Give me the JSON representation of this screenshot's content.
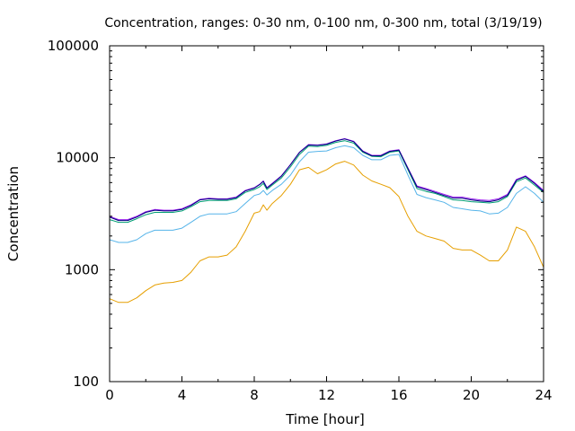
{
  "chart_data": {
    "type": "line",
    "title": "Concentration, ranges: 0-30 nm, 0-100 nm, 0-300 nm, total (3/19/19)",
    "xlabel": "Time [hour]",
    "ylabel": "Concentration",
    "xlim": [
      0,
      24
    ],
    "ylim": [
      100,
      100000
    ],
    "yscale": "log",
    "xticks": [
      0,
      4,
      8,
      12,
      16,
      20,
      24
    ],
    "yticks": [
      100,
      1000,
      10000,
      100000
    ],
    "ytick_labels": [
      "100",
      "1000",
      "10000",
      "100000"
    ],
    "grid": false,
    "series": [
      {
        "color": "#e69f00",
        "x": [
          0,
          0.5,
          1,
          1.5,
          2,
          2.5,
          3,
          3.5,
          4,
          4.5,
          5,
          5.5,
          6,
          6.5,
          7,
          7.5,
          8,
          8.3,
          8.5,
          8.7,
          9,
          9.5,
          10,
          10.5,
          11,
          11.5,
          12,
          12.5,
          13,
          13.5,
          14,
          14.5,
          15,
          15.5,
          16,
          16.5,
          17,
          17.5,
          18,
          18.5,
          19,
          19.5,
          20,
          20.5,
          21,
          21.5,
          22,
          22.5,
          23,
          23.5,
          24
        ],
        "y": [
          550,
          510,
          510,
          560,
          650,
          730,
          760,
          770,
          800,
          950,
          1200,
          1300,
          1300,
          1350,
          1600,
          2200,
          3200,
          3300,
          3800,
          3400,
          3900,
          4600,
          5800,
          7800,
          8200,
          7200,
          7800,
          8800,
          9300,
          8600,
          7000,
          6200,
          5800,
          5400,
          4500,
          3000,
          2200,
          2000,
          1900,
          1800,
          1550,
          1500,
          1500,
          1350,
          1200,
          1200,
          1500,
          2400,
          2200,
          1600,
          1050
        ]
      },
      {
        "color": "#56b4e9",
        "x": [
          0,
          0.5,
          1,
          1.5,
          2,
          2.5,
          3,
          3.5,
          4,
          4.5,
          5,
          5.5,
          6,
          6.5,
          7,
          7.5,
          8,
          8.3,
          8.5,
          8.7,
          9,
          9.5,
          10,
          10.5,
          11,
          11.5,
          12,
          12.5,
          13,
          13.5,
          14,
          14.5,
          15,
          15.5,
          16,
          16.5,
          17,
          17.5,
          18,
          18.5,
          19,
          19.5,
          20,
          20.5,
          21,
          21.5,
          22,
          22.5,
          23,
          23.5,
          24
        ],
        "y": [
          1850,
          1750,
          1750,
          1850,
          2100,
          2250,
          2250,
          2250,
          2350,
          2650,
          3000,
          3150,
          3150,
          3150,
          3300,
          3900,
          4600,
          4750,
          5100,
          4650,
          5100,
          5800,
          7000,
          9200,
          11200,
          11400,
          11500,
          12300,
          12800,
          12300,
          10500,
          9600,
          9600,
          10500,
          10700,
          7000,
          4700,
          4400,
          4200,
          4000,
          3600,
          3500,
          3400,
          3350,
          3150,
          3200,
          3600,
          4800,
          5500,
          4800,
          4000
        ]
      },
      {
        "color": "#009e73",
        "x": [
          0,
          0.5,
          1,
          1.5,
          2,
          2.5,
          3,
          3.5,
          4,
          4.5,
          5,
          5.5,
          6,
          6.5,
          7,
          7.5,
          8,
          8.3,
          8.5,
          8.7,
          9,
          9.5,
          10,
          10.5,
          11,
          11.5,
          12,
          12.5,
          13,
          13.5,
          14,
          14.5,
          15,
          15.5,
          16,
          16.5,
          17,
          17.5,
          18,
          18.5,
          19,
          19.5,
          20,
          20.5,
          21,
          21.5,
          22,
          22.5,
          23,
          23.5,
          24
        ],
        "y": [
          2800,
          2650,
          2650,
          2850,
          3100,
          3250,
          3250,
          3250,
          3350,
          3650,
          4050,
          4150,
          4150,
          4150,
          4300,
          4900,
          5200,
          5500,
          5900,
          5200,
          5700,
          6600,
          8300,
          10700,
          12700,
          12600,
          12900,
          13700,
          14200,
          13500,
          11200,
          10300,
          10200,
          11200,
          11500,
          7800,
          5300,
          5000,
          4800,
          4500,
          4200,
          4150,
          4050,
          4000,
          3950,
          4050,
          4500,
          6100,
          6600,
          5700,
          4900
        ]
      },
      {
        "color": "#a020f0",
        "x": [
          0,
          0.5,
          1,
          1.5,
          2,
          2.5,
          3,
          3.5,
          4,
          4.5,
          5,
          5.5,
          6,
          6.5,
          7,
          7.5,
          8,
          8.3,
          8.5,
          8.7,
          9,
          9.5,
          10,
          10.5,
          11,
          11.5,
          12,
          12.5,
          13,
          13.5,
          14,
          14.5,
          15,
          15.5,
          16,
          16.5,
          17,
          17.5,
          18,
          18.5,
          19,
          19.5,
          20,
          20.5,
          21,
          21.5,
          22,
          22.5,
          23,
          23.5,
          24
        ],
        "y": [
          3000,
          2800,
          2800,
          3000,
          3300,
          3450,
          3400,
          3400,
          3500,
          3800,
          4250,
          4350,
          4300,
          4300,
          4450,
          5100,
          5400,
          5800,
          6200,
          5400,
          5900,
          6900,
          8700,
          11200,
          13100,
          13000,
          13300,
          14200,
          14800,
          14000,
          11500,
          10500,
          10500,
          11500,
          11800,
          8100,
          5600,
          5300,
          5000,
          4700,
          4450,
          4450,
          4300,
          4200,
          4150,
          4300,
          4700,
          6400,
          6900,
          6000,
          5100
        ]
      },
      {
        "color": "#000080",
        "x": [
          0,
          0.5,
          1,
          1.5,
          2,
          2.5,
          3,
          3.5,
          4,
          4.5,
          5,
          5.5,
          6,
          6.5,
          7,
          7.5,
          8,
          8.3,
          8.5,
          8.7,
          9,
          9.5,
          10,
          10.5,
          11,
          11.5,
          12,
          12.5,
          13,
          13.5,
          14,
          14.5,
          15,
          15.5,
          16,
          16.5,
          17,
          17.5,
          18,
          18.5,
          19,
          19.5,
          20,
          20.5,
          21,
          21.5,
          22,
          22.5,
          23,
          23.5,
          24
        ],
        "y": [
          2950,
          2750,
          2750,
          2950,
          3250,
          3400,
          3350,
          3350,
          3450,
          3750,
          4200,
          4300,
          4250,
          4250,
          4400,
          5050,
          5350,
          5750,
          6150,
          5350,
          5850,
          6850,
          8650,
          11150,
          13000,
          12900,
          13200,
          14100,
          14700,
          13900,
          11400,
          10400,
          10400,
          11400,
          11700,
          8000,
          5500,
          5200,
          4900,
          4600,
          4350,
          4350,
          4200,
          4100,
          4050,
          4200,
          4600,
          6300,
          6800,
          5900,
          5000
        ]
      }
    ]
  }
}
